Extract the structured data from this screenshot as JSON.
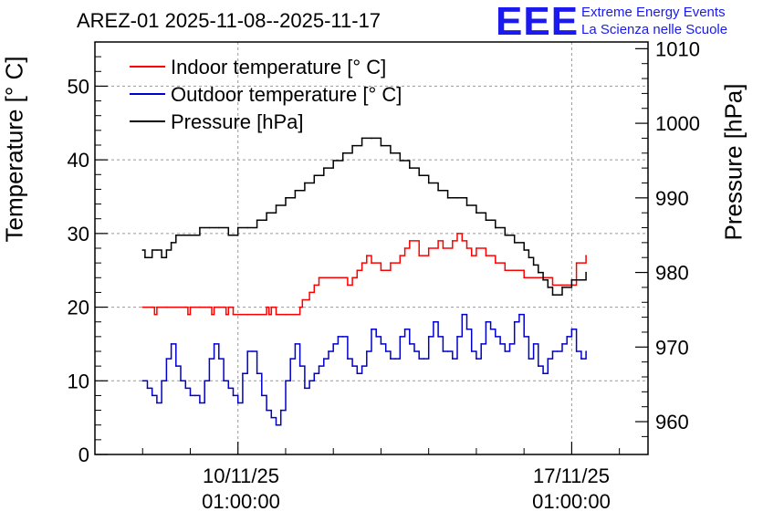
{
  "header": {
    "title": "AREZ-01 2025-11-08--2025-11-17",
    "logo": "EEE",
    "logo_line1": "Extreme Energy Events",
    "logo_line2": "La Scienza nelle Scuole"
  },
  "axes": {
    "left_label": "Temperature [° C]",
    "right_label": "Pressure [hPa]",
    "x_ticks": [
      {
        "date": "10/11/25",
        "time": "01:00:00",
        "day": 2
      },
      {
        "date": "17/11/25",
        "time": "01:00:00",
        "day": 9
      }
    ]
  },
  "colors": {
    "indoor": "#ff0000",
    "outdoor": "#0000cc",
    "pressure": "#000000",
    "logo": "#1a1aee"
  },
  "chart_data": {
    "type": "line",
    "title": "AREZ-01 2025-11-08--2025-11-17",
    "xlabel": "",
    "ylabel": "Temperature [° C]",
    "y2label": "Pressure [hPa]",
    "xlim": [
      -1.0,
      10.6
    ],
    "ylim": [
      0,
      56
    ],
    "y2lim": [
      955.6,
      1010.9
    ],
    "y_ticks": [
      0,
      10,
      20,
      30,
      40,
      50
    ],
    "y2_ticks": [
      960,
      970,
      980,
      990,
      1000,
      1010
    ],
    "grid": true,
    "legend": "top-left",
    "series": [
      {
        "name": "Indoor temperature [° C]",
        "axis": "left",
        "color": "#ff0000",
        "x": [
          0.0,
          0.2,
          0.25,
          0.3,
          0.5,
          0.9,
          0.95,
          1.0,
          1.2,
          1.4,
          1.45,
          1.5,
          1.6,
          1.7,
          1.75,
          1.8,
          1.9,
          2.2,
          2.4,
          2.6,
          2.65,
          2.7,
          2.8,
          3.0,
          3.2,
          3.3,
          3.35,
          3.5,
          3.6,
          3.7,
          3.8,
          4.3,
          4.4,
          4.5,
          4.6,
          4.7,
          4.8,
          5.0,
          5.2,
          5.4,
          5.5,
          5.6,
          5.8,
          6.0,
          6.2,
          6.3,
          6.5,
          6.6,
          6.7,
          6.8,
          6.9,
          7.0,
          7.2,
          7.4,
          7.6,
          7.8,
          8.0,
          8.4,
          8.6,
          8.8,
          8.9,
          9.0,
          9.1,
          9.3
        ],
        "values": [
          20,
          20,
          19,
          20,
          20,
          20,
          19,
          20,
          20,
          20,
          19,
          20,
          20,
          20,
          19,
          20,
          19,
          19,
          19,
          20,
          19,
          20,
          19,
          19,
          19,
          20,
          21,
          22,
          23,
          24,
          24,
          23,
          24,
          25,
          26,
          27,
          26,
          25,
          26,
          27,
          28,
          29,
          27,
          28,
          29,
          28,
          29,
          30,
          29,
          28,
          27,
          28,
          27,
          26,
          25,
          25,
          24,
          24,
          23,
          23,
          23,
          23,
          26,
          27
        ]
      },
      {
        "name": "Outdoor temperature [° C]",
        "axis": "left",
        "color": "#0000cc",
        "x": [
          0.0,
          0.1,
          0.2,
          0.3,
          0.4,
          0.5,
          0.6,
          0.7,
          0.8,
          0.9,
          1.0,
          1.1,
          1.2,
          1.3,
          1.4,
          1.5,
          1.6,
          1.7,
          1.8,
          1.9,
          2.0,
          2.1,
          2.2,
          2.3,
          2.4,
          2.5,
          2.6,
          2.7,
          2.8,
          2.9,
          3.0,
          3.1,
          3.2,
          3.3,
          3.4,
          3.5,
          3.6,
          3.7,
          3.8,
          3.9,
          4.0,
          4.1,
          4.2,
          4.3,
          4.4,
          4.5,
          4.6,
          4.7,
          4.8,
          4.9,
          5.0,
          5.1,
          5.2,
          5.3,
          5.4,
          5.5,
          5.6,
          5.7,
          5.8,
          5.9,
          6.0,
          6.1,
          6.2,
          6.3,
          6.4,
          6.5,
          6.6,
          6.7,
          6.8,
          6.9,
          7.0,
          7.1,
          7.2,
          7.3,
          7.4,
          7.5,
          7.6,
          7.7,
          7.8,
          7.9,
          8.0,
          8.1,
          8.2,
          8.3,
          8.4,
          8.5,
          8.6,
          8.7,
          8.8,
          8.9,
          9.0,
          9.1,
          9.2,
          9.3
        ],
        "values": [
          10,
          9,
          8,
          7,
          10,
          13,
          15,
          12,
          10,
          9,
          8,
          8,
          7,
          10,
          13,
          15,
          13,
          10,
          9,
          8,
          7,
          11,
          14,
          14,
          11,
          8,
          6,
          5,
          4,
          6,
          10,
          13,
          15,
          12,
          9,
          10,
          11,
          12,
          13,
          14,
          15,
          16,
          16,
          13,
          12,
          11,
          12,
          14,
          17,
          16,
          15,
          14,
          13,
          13,
          16,
          17,
          15,
          14,
          13,
          13,
          16,
          18,
          16,
          14,
          14,
          13,
          16,
          19,
          17,
          14,
          13,
          15,
          18,
          17,
          16,
          15,
          14,
          15,
          18,
          19,
          16,
          13,
          15,
          12,
          11,
          13,
          14,
          14,
          15,
          16,
          17,
          14,
          13,
          14
        ]
      },
      {
        "name": "Pressure [hPa]",
        "axis": "right",
        "color": "#000000",
        "x": [
          0.0,
          0.05,
          0.1,
          0.2,
          0.3,
          0.4,
          0.5,
          0.6,
          0.7,
          0.8,
          1.0,
          1.2,
          1.4,
          1.6,
          1.8,
          2.0,
          2.2,
          2.4,
          2.6,
          2.8,
          3.0,
          3.2,
          3.4,
          3.6,
          3.8,
          4.0,
          4.2,
          4.4,
          4.6,
          4.8,
          5.0,
          5.2,
          5.4,
          5.6,
          5.8,
          6.0,
          6.2,
          6.4,
          6.6,
          6.8,
          7.0,
          7.2,
          7.4,
          7.6,
          7.8,
          8.0,
          8.1,
          8.2,
          8.3,
          8.4,
          8.5,
          8.6,
          8.8,
          9.0,
          9.2,
          9.3
        ],
        "values": [
          983,
          982,
          982,
          983,
          983,
          982,
          983,
          984,
          985,
          985,
          985,
          986,
          986,
          986,
          985,
          986,
          986,
          987,
          988,
          989,
          990,
          991,
          992,
          993,
          994,
          995,
          996,
          997,
          998,
          998,
          997,
          996,
          995,
          994,
          993,
          992,
          991,
          990,
          990,
          989,
          988,
          987,
          986,
          985,
          984,
          983,
          982,
          981,
          980,
          979,
          978,
          977,
          978,
          979,
          979,
          980
        ]
      }
    ]
  }
}
